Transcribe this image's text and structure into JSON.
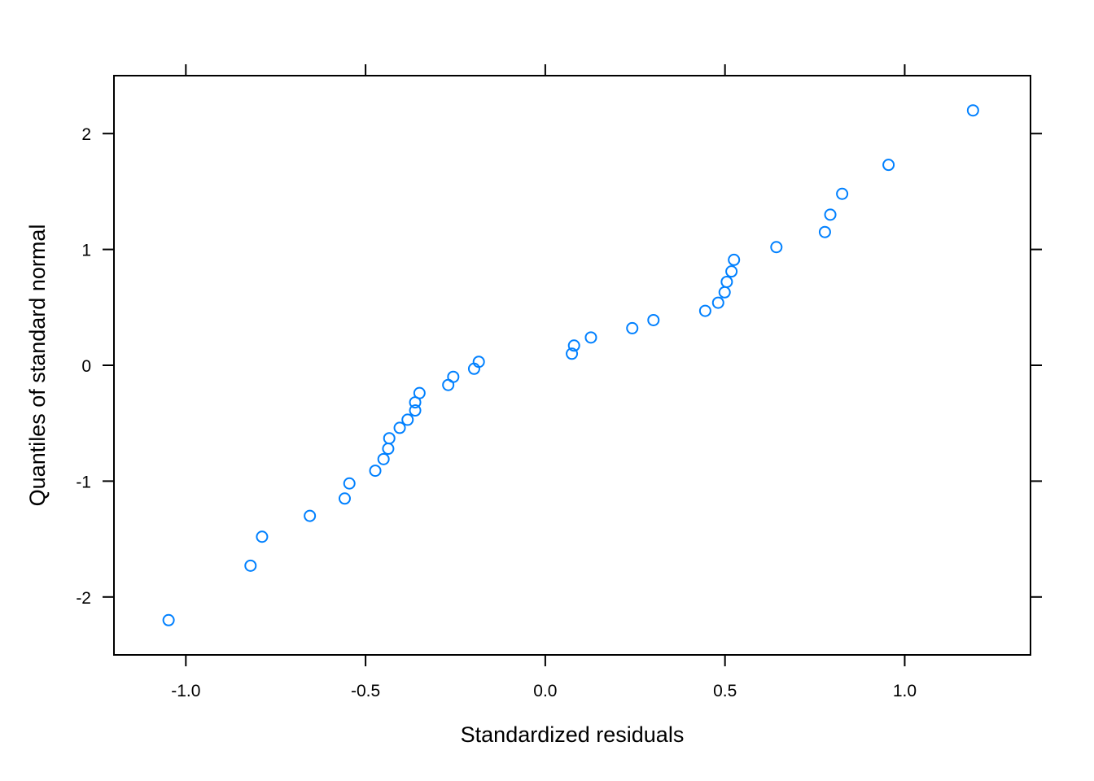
{
  "chart_data": {
    "type": "scatter",
    "title": "",
    "xlabel": "Standardized residuals",
    "ylabel": "Quantiles of standard normal",
    "xlim": [
      -1.2,
      1.35
    ],
    "ylim": [
      -2.5,
      2.5
    ],
    "x_ticks": [
      {
        "value": -1.0,
        "label": "-1.0"
      },
      {
        "value": -0.5,
        "label": "-0.5"
      },
      {
        "value": 0.0,
        "label": "0.0"
      },
      {
        "value": 0.5,
        "label": "0.5"
      },
      {
        "value": 1.0,
        "label": "1.0"
      }
    ],
    "y_ticks": [
      {
        "value": -2,
        "label": "-2"
      },
      {
        "value": -1,
        "label": "-1"
      },
      {
        "value": 0,
        "label": "0"
      },
      {
        "value": 1,
        "label": "1"
      },
      {
        "value": 2,
        "label": "2"
      }
    ],
    "grid": false,
    "marker": "open-circle",
    "color": "#0080ff",
    "series": [
      {
        "points": [
          [
            -1.048,
            -2.2
          ],
          [
            -0.82,
            -1.73
          ],
          [
            -0.788,
            -1.48
          ],
          [
            -0.655,
            -1.3
          ],
          [
            -0.558,
            -1.15
          ],
          [
            -0.545,
            -1.02
          ],
          [
            -0.473,
            -0.91
          ],
          [
            -0.45,
            -0.81
          ],
          [
            -0.437,
            -0.72
          ],
          [
            -0.434,
            -0.63
          ],
          [
            -0.405,
            -0.54
          ],
          [
            -0.383,
            -0.47
          ],
          [
            -0.362,
            -0.39
          ],
          [
            -0.362,
            -0.32
          ],
          [
            -0.35,
            -0.24
          ],
          [
            -0.27,
            -0.17
          ],
          [
            -0.256,
            -0.1
          ],
          [
            -0.198,
            -0.03
          ],
          [
            -0.185,
            0.03
          ],
          [
            0.074,
            0.1
          ],
          [
            0.08,
            0.17
          ],
          [
            0.127,
            0.24
          ],
          [
            0.242,
            0.32
          ],
          [
            0.301,
            0.39
          ],
          [
            0.445,
            0.47
          ],
          [
            0.481,
            0.54
          ],
          [
            0.499,
            0.63
          ],
          [
            0.505,
            0.72
          ],
          [
            0.518,
            0.81
          ],
          [
            0.525,
            0.91
          ],
          [
            0.643,
            1.02
          ],
          [
            0.778,
            1.15
          ],
          [
            0.793,
            1.3
          ],
          [
            0.826,
            1.48
          ],
          [
            0.955,
            1.73
          ],
          [
            1.19,
            2.2
          ]
        ]
      }
    ]
  }
}
